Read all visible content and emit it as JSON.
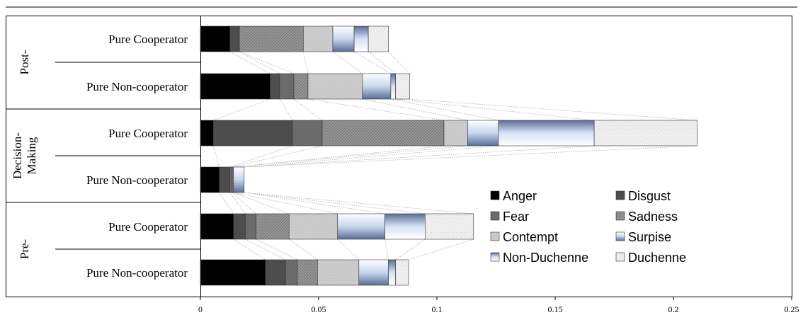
{
  "chart_data": {
    "type": "bar",
    "orientation": "horizontal",
    "stacked": true,
    "title": "",
    "xlabel": "",
    "ylabel": "",
    "xlim": [
      0,
      0.25
    ],
    "x_ticks": [
      0,
      0.05,
      0.1,
      0.15,
      0.2,
      0.25
    ],
    "x_tick_labels": [
      "0",
      "0.05",
      "0.1",
      "0.15",
      "0.2",
      "0.25"
    ],
    "grid": false,
    "legend_position": "lower-right",
    "groups": [
      {
        "label_lines": [
          "Post-"
        ],
        "categories": [
          "Pure Cooperator",
          "Pure Non-cooperator"
        ]
      },
      {
        "label_lines": [
          "Decision-",
          "Making"
        ],
        "categories": [
          "Pure Cooperator",
          "Pure Non-cooperator"
        ]
      },
      {
        "label_lines": [
          "Pre-"
        ],
        "categories": [
          "Pure Cooperator",
          "Pure Non-cooperator"
        ]
      }
    ],
    "rows": [
      {
        "group": "Post-",
        "category": "Pure Cooperator"
      },
      {
        "group": "Post-",
        "category": "Pure Non-cooperator"
      },
      {
        "group": "Decision-Making",
        "category": "Pure Cooperator"
      },
      {
        "group": "Decision-Making",
        "category": "Pure Non-cooperator"
      },
      {
        "group": "Pre-",
        "category": "Pure Cooperator"
      },
      {
        "group": "Pre-",
        "category": "Pure Non-cooperator"
      }
    ],
    "series": [
      {
        "name": "Anger",
        "pattern": "solid-black",
        "values": [
          0.0125,
          0.0295,
          0.0055,
          0.008,
          0.014,
          0.0275
        ]
      },
      {
        "name": "Disgust",
        "pattern": "dark-gray",
        "values": [
          0.004,
          0.004,
          0.0335,
          0.0045,
          0.005,
          0.0085
        ]
      },
      {
        "name": "Fear",
        "pattern": "medium-gray",
        "values": [
          0.0,
          0.006,
          0.0125,
          0.001,
          0.0045,
          0.005
        ]
      },
      {
        "name": "Sadness",
        "pattern": "gray-hatch",
        "values": [
          0.027,
          0.006,
          0.0515,
          0.0005,
          0.014,
          0.0085
        ]
      },
      {
        "name": "Contempt",
        "pattern": "light-gray-dots",
        "values": [
          0.0125,
          0.023,
          0.01,
          0.0,
          0.0205,
          0.0175
        ]
      },
      {
        "name": "Surpise",
        "pattern": "blue-gradient",
        "values": [
          0.009,
          0.012,
          0.013,
          0.0045,
          0.02,
          0.0125
        ]
      },
      {
        "name": "Non-Duchenne",
        "pattern": "blue-gradient-2",
        "values": [
          0.006,
          0.002,
          0.0405,
          0.0,
          0.017,
          0.003
        ]
      },
      {
        "name": "Duchenne",
        "pattern": "speckle",
        "values": [
          0.0085,
          0.006,
          0.0435,
          0.0,
          0.0205,
          0.0055
        ]
      }
    ]
  }
}
